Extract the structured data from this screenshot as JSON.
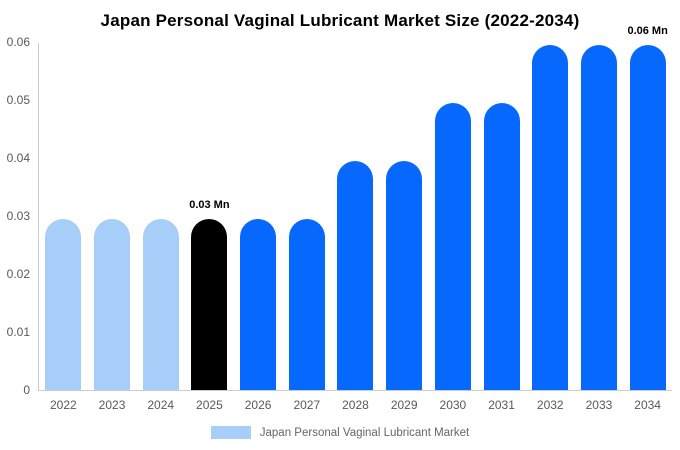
{
  "chart": {
    "title": "Japan Personal Vaginal Lubricant Market Size (2022-2034)",
    "legend": {
      "label": "Japan Personal Vaginal Lubricant Market",
      "swatch_color": "#A6CEF9"
    }
  },
  "chart_data": {
    "type": "bar",
    "title": "Japan Personal Vaginal Lubricant Market Size (2022-2034)",
    "xlabel": "",
    "ylabel": "",
    "unit": "Mn",
    "categories": [
      "2022",
      "2023",
      "2024",
      "2025",
      "2026",
      "2027",
      "2028",
      "2029",
      "2030",
      "2031",
      "2032",
      "2033",
      "2034"
    ],
    "values": [
      0.0295,
      0.0295,
      0.0295,
      0.0295,
      0.0295,
      0.0295,
      0.0395,
      0.0395,
      0.0495,
      0.0495,
      0.0595,
      0.0595,
      0.0595
    ],
    "bar_colors": [
      "#A6CEF9",
      "#A6CEF9",
      "#A6CEF9",
      "#000000",
      "#0768FD",
      "#0768FD",
      "#0768FD",
      "#0768FD",
      "#0768FD",
      "#0768FD",
      "#0768FD",
      "#0768FD",
      "#0768FD"
    ],
    "color_roles": {
      "historical": "#A6CEF9",
      "base_year": "#000000",
      "forecast": "#0768FD"
    },
    "annotations": [
      {
        "category": "2025",
        "label": "0.03 Mn"
      },
      {
        "category": "2034",
        "label": "0.06 Mn"
      }
    ],
    "ylim": [
      0,
      0.06
    ],
    "yticks": [
      "0",
      "0.01",
      "0.02",
      "0.03",
      "0.04",
      "0.05",
      "0.06"
    ],
    "grid": false,
    "legend_position": "bottom",
    "axis_line_color": "#cccccc",
    "tick_label_color": "#595959"
  }
}
